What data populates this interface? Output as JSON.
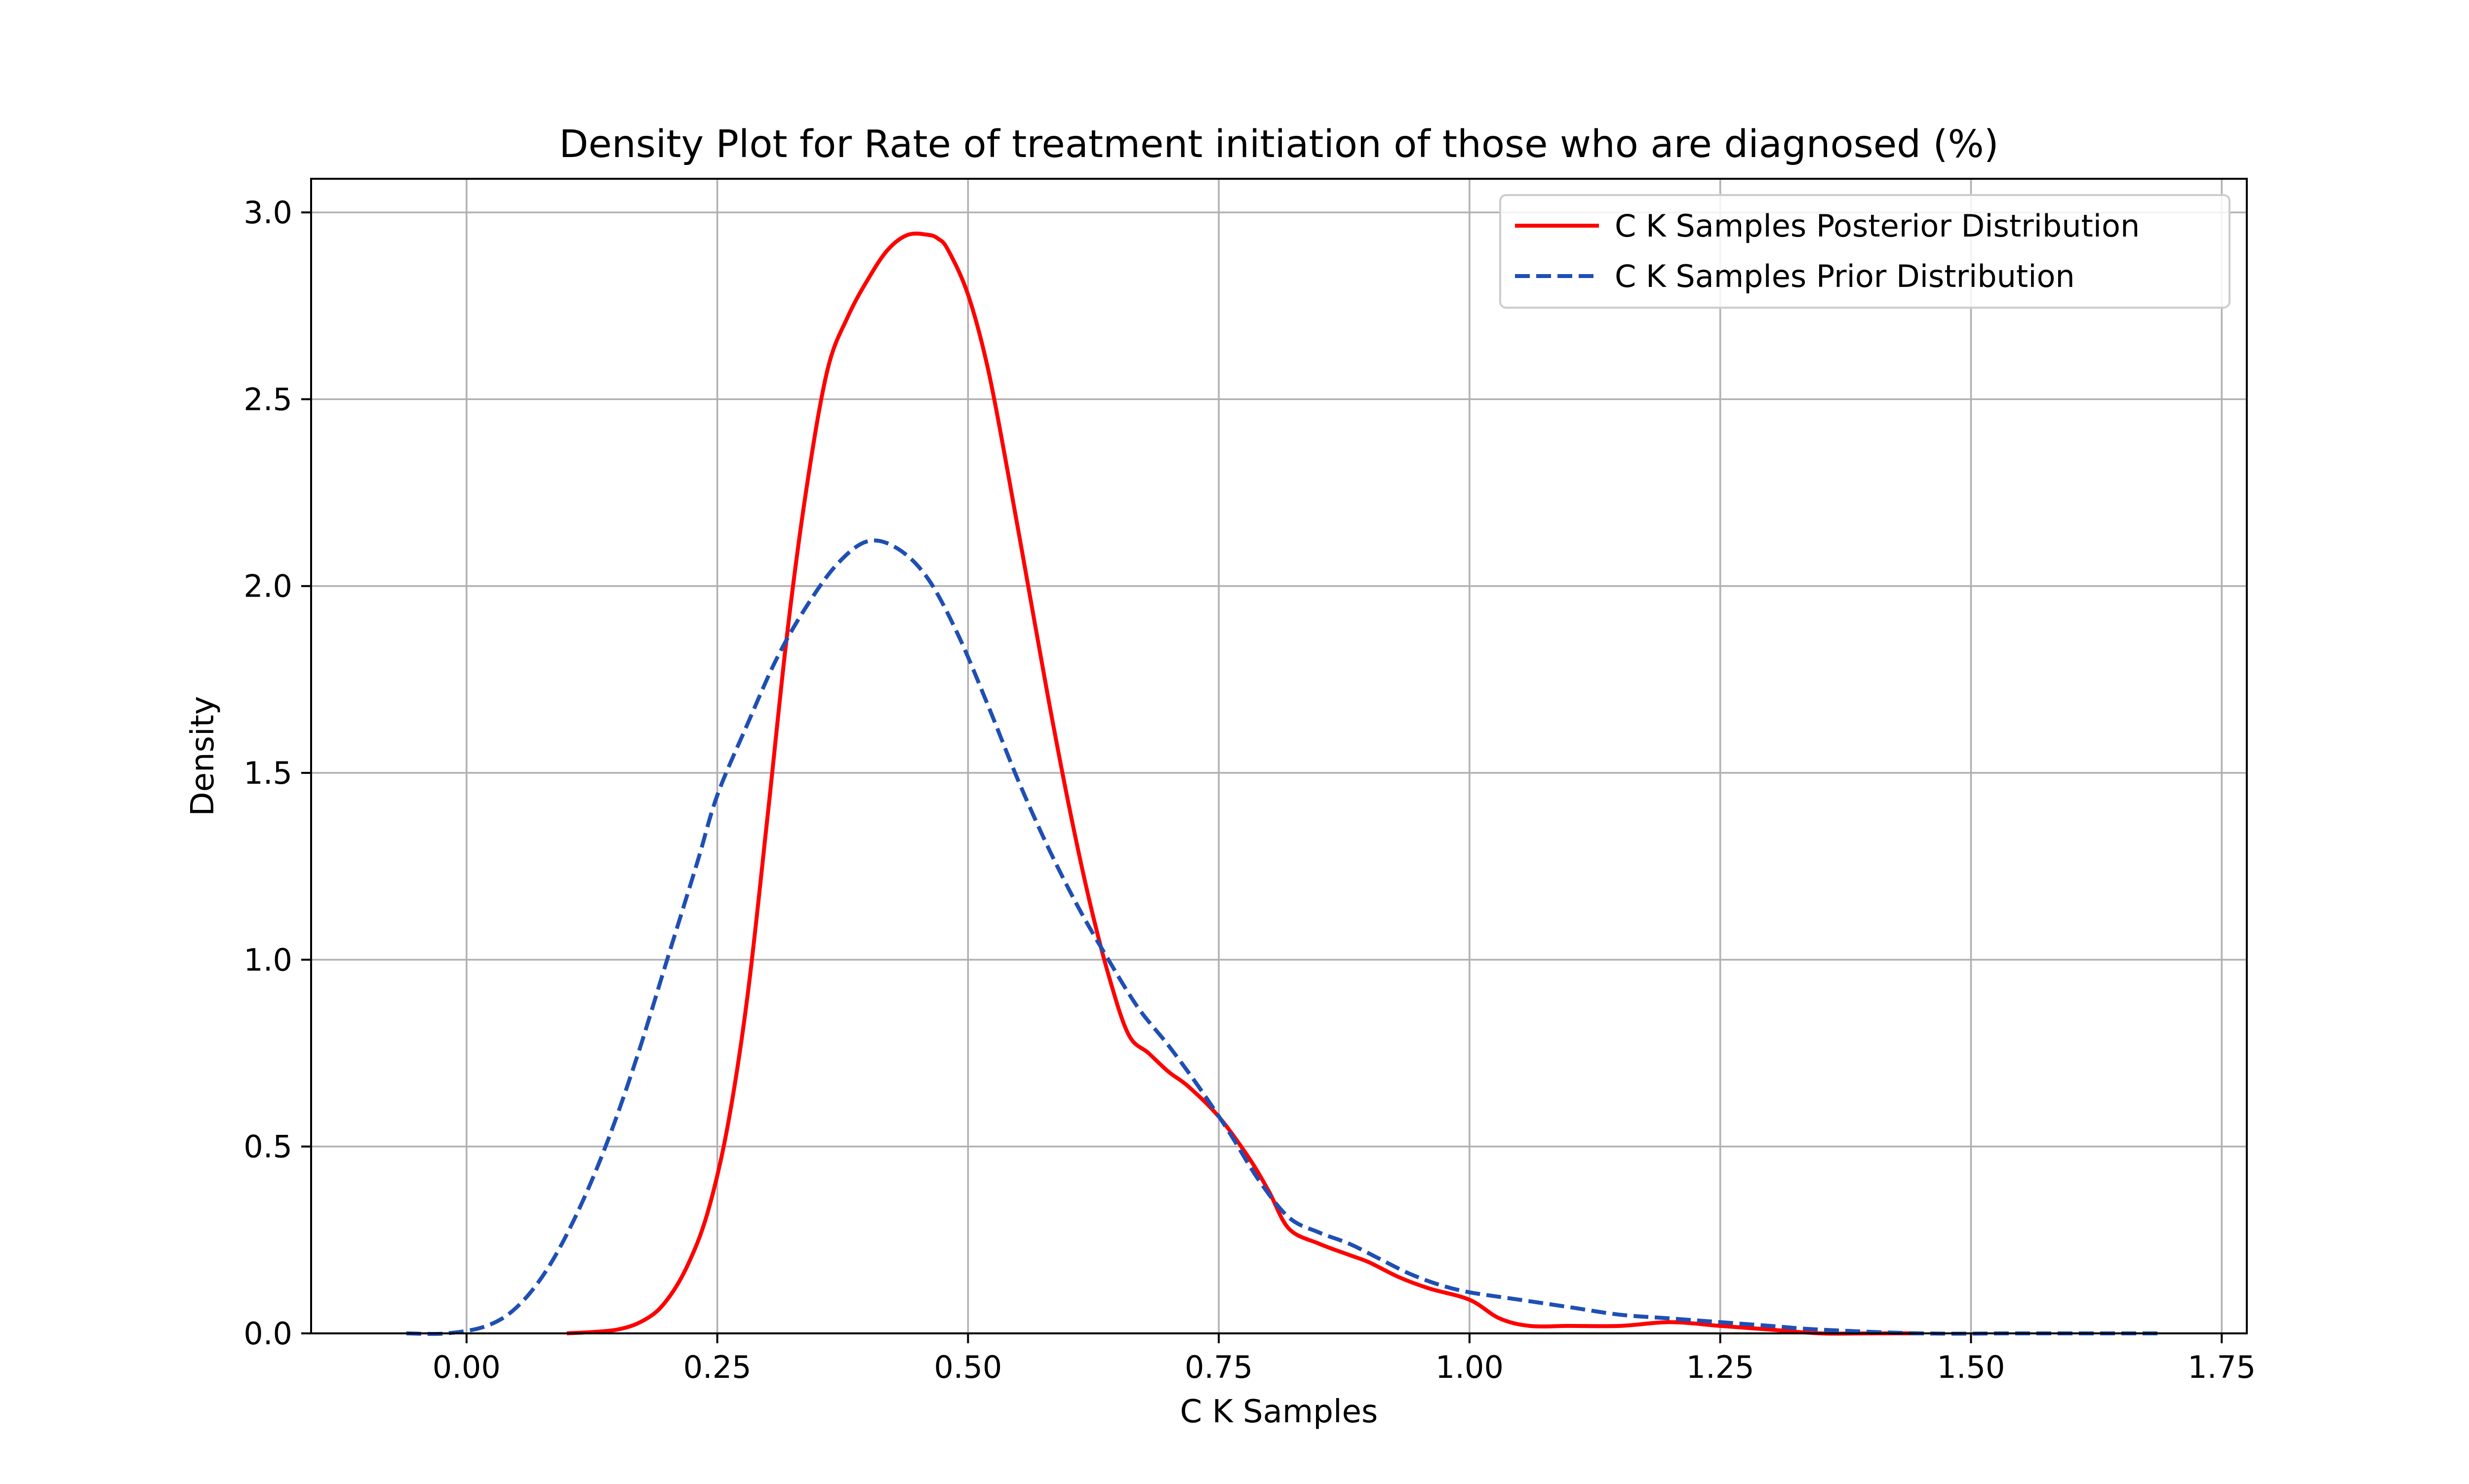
{
  "chart_data": {
    "type": "line",
    "title": "Density Plot for Rate of treatment initiation of those who are diagnosed (%)",
    "xlabel": "C K Samples",
    "ylabel": "Density",
    "xlim": [
      -0.155,
      1.775
    ],
    "ylim": [
      0.0,
      3.09
    ],
    "xticks": [
      0.0,
      0.25,
      0.5,
      0.75,
      1.0,
      1.25,
      1.5,
      1.75
    ],
    "xtick_labels": [
      "0.00",
      "0.25",
      "0.50",
      "0.75",
      "1.00",
      "1.25",
      "1.50",
      "1.75"
    ],
    "yticks": [
      0.0,
      0.5,
      1.0,
      1.5,
      2.0,
      2.5,
      3.0
    ],
    "ytick_labels": [
      "0.0",
      "0.5",
      "1.0",
      "1.5",
      "2.0",
      "2.5",
      "3.0"
    ],
    "grid": true,
    "legend_position": "upper right",
    "series": [
      {
        "name": "C K Samples Posterior Distribution",
        "color": "#ff0000",
        "style": "solid",
        "x": [
          0.1,
          0.15,
          0.18,
          0.2,
          0.22,
          0.24,
          0.26,
          0.28,
          0.3,
          0.32,
          0.34,
          0.36,
          0.38,
          0.4,
          0.42,
          0.44,
          0.46,
          0.47,
          0.48,
          0.5,
          0.52,
          0.54,
          0.56,
          0.58,
          0.6,
          0.62,
          0.64,
          0.66,
          0.68,
          0.7,
          0.72,
          0.75,
          0.78,
          0.8,
          0.82,
          0.85,
          0.88,
          0.9,
          0.93,
          0.96,
          1.0,
          1.03,
          1.06,
          1.1,
          1.15,
          1.2,
          1.25,
          1.3,
          1.35,
          1.4,
          1.45
        ],
        "y": [
          0.0,
          0.01,
          0.04,
          0.09,
          0.18,
          0.32,
          0.55,
          0.9,
          1.38,
          1.88,
          2.28,
          2.58,
          2.72,
          2.82,
          2.9,
          2.94,
          2.94,
          2.93,
          2.9,
          2.78,
          2.58,
          2.3,
          2.0,
          1.7,
          1.42,
          1.17,
          0.96,
          0.8,
          0.75,
          0.7,
          0.66,
          0.58,
          0.47,
          0.38,
          0.28,
          0.24,
          0.21,
          0.19,
          0.15,
          0.12,
          0.09,
          0.04,
          0.02,
          0.02,
          0.02,
          0.03,
          0.02,
          0.01,
          0.0,
          0.0,
          0.0
        ]
      },
      {
        "name": "C K Samples Prior Distribution",
        "color": "#1f4fb4",
        "style": "dashed",
        "x": [
          -0.06,
          -0.02,
          0.02,
          0.05,
          0.08,
          0.11,
          0.14,
          0.17,
          0.2,
          0.23,
          0.25,
          0.28,
          0.31,
          0.34,
          0.37,
          0.4,
          0.43,
          0.46,
          0.49,
          0.52,
          0.55,
          0.58,
          0.61,
          0.64,
          0.67,
          0.7,
          0.73,
          0.76,
          0.79,
          0.82,
          0.85,
          0.88,
          0.91,
          0.94,
          0.97,
          1.0,
          1.05,
          1.1,
          1.15,
          1.2,
          1.25,
          1.3,
          1.35,
          1.45,
          1.55,
          1.69
        ],
        "y": [
          0.0,
          0.0,
          0.02,
          0.07,
          0.17,
          0.32,
          0.51,
          0.74,
          1.0,
          1.26,
          1.44,
          1.63,
          1.81,
          1.95,
          2.06,
          2.12,
          2.1,
          2.02,
          1.87,
          1.68,
          1.48,
          1.3,
          1.14,
          1.0,
          0.87,
          0.77,
          0.66,
          0.54,
          0.41,
          0.31,
          0.27,
          0.24,
          0.2,
          0.16,
          0.13,
          0.11,
          0.09,
          0.07,
          0.05,
          0.04,
          0.03,
          0.02,
          0.01,
          0.0,
          0.0,
          0.0
        ]
      }
    ]
  }
}
